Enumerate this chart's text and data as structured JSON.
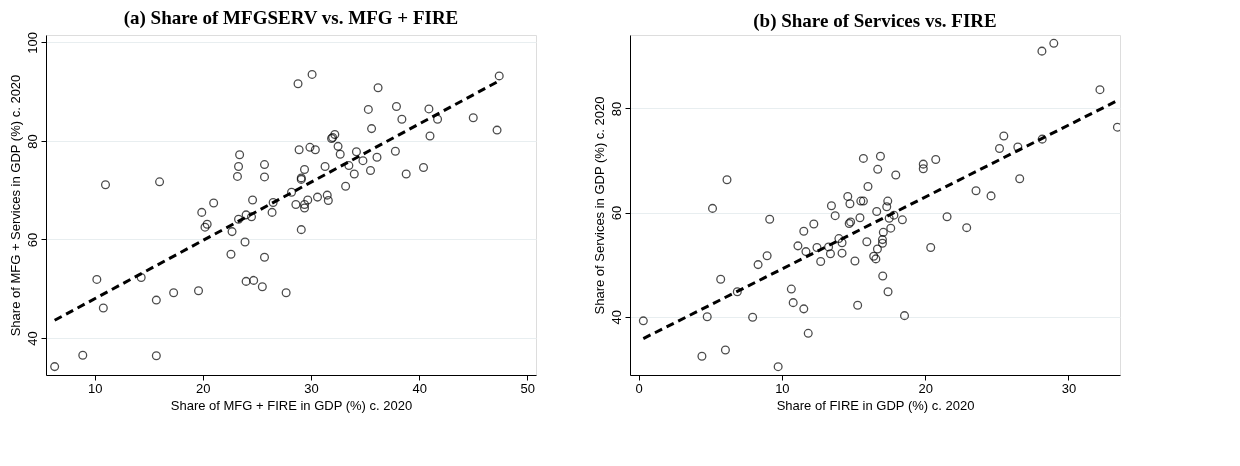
{
  "chart_data": [
    {
      "type": "scatter",
      "title": "(a) Share of MFGSERV vs. MFG + FIRE",
      "xlabel": "Share of MFG + FIRE in GDP (%) c. 2020",
      "ylabel": "Share of MFG + Services in GDP (%) c. 2020",
      "xlim": [
        5.5,
        50.8
      ],
      "ylim": [
        32.5,
        101.5
      ],
      "xticks": [
        10,
        20,
        30,
        40,
        50
      ],
      "yticks": [
        40,
        60,
        80,
        100
      ],
      "grid": "y",
      "series": [
        {
          "color": "#000000",
          "marker": "circle",
          "x": [
            6.3,
            8.9,
            11.0,
            10.2,
            10.8,
            14.3,
            15.7,
            15.7,
            16.0,
            17.3,
            19.6,
            19.9,
            20.2,
            20.4,
            21.0,
            22.7,
            22.6,
            23.4,
            23.3,
            23.2,
            23.3,
            23.9,
            24.0,
            24.5,
            24.6,
            24.0,
            24.7,
            25.5,
            25.7,
            25.7,
            25.7,
            26.4,
            26.5,
            27.7,
            28.2,
            28.8,
            30.1,
            28.9,
            29.9,
            30.4,
            29.4,
            29.1,
            29.1,
            28.6,
            29.4,
            29.4,
            29.7,
            30.6,
            29.1,
            31.3,
            31.5,
            31.6,
            31.9,
            32.0,
            32.2,
            32.5,
            32.7,
            33.2,
            33.5,
            34.0,
            34.2,
            34.8,
            35.3,
            35.6,
            35.5,
            36.1,
            36.2,
            37.9,
            37.8,
            38.4,
            38.8,
            40.4,
            40.9,
            41.0,
            41.7,
            45.0,
            47.2,
            47.4
          ],
          "values": [
            34.2,
            36.5,
            71.1,
            51.9,
            46.1,
            52.3,
            47.7,
            36.4,
            71.7,
            49.2,
            49.6,
            65.5,
            62.5,
            63.1,
            67.4,
            61.6,
            57.0,
            77.2,
            74.8,
            72.8,
            64.1,
            59.5,
            65.0,
            64.6,
            68.0,
            51.5,
            51.7,
            50.4,
            75.2,
            72.7,
            56.4,
            65.5,
            67.5,
            49.2,
            69.6,
            91.6,
            93.5,
            78.2,
            78.7,
            78.2,
            74.2,
            72.5,
            72.2,
            67.1,
            67.1,
            66.4,
            68.0,
            68.6,
            62.0,
            74.8,
            69.0,
            67.9,
            80.5,
            80.7,
            81.3,
            78.9,
            77.3,
            70.8,
            75.0,
            73.3,
            77.8,
            76.0,
            86.4,
            82.5,
            74.0,
            76.7,
            90.8,
            87.0,
            77.9,
            84.4,
            73.3,
            74.6,
            86.5,
            81.0,
            84.4,
            84.7,
            82.2,
            93.2
          ]
        },
        {
          "type": "line",
          "color": "#000000",
          "line_style": "dashed",
          "marker": "none",
          "x": [
            6.3,
            47.4
          ],
          "values": [
            43.6,
            92.2
          ]
        }
      ]
    },
    {
      "type": "scatter",
      "title": "(b) Share of Services vs. FIRE",
      "xlabel": "Share of FIRE in GDP (%) c. 2020",
      "ylabel": "Share of Services in GDP (%) c. 2020",
      "xlim": [
        -0.6,
        33.6
      ],
      "ylim": [
        28.8,
        94.1
      ],
      "xticks": [
        0,
        10,
        20,
        30
      ],
      "yticks": [
        40,
        60,
        80
      ],
      "grid": "y",
      "series": [
        {
          "color": "#000000",
          "marker": "circle",
          "x": [
            0.33,
            4.42,
            4.79,
            5.16,
            5.73,
            6.06,
            6.17,
            6.89,
            7.96,
            8.34,
            8.97,
            9.15,
            9.74,
            10.66,
            10.79,
            11.12,
            11.53,
            11.68,
            11.53,
            11.84,
            12.23,
            12.45,
            12.71,
            13.26,
            13.39,
            13.46,
            13.72,
            13.98,
            14.2,
            14.2,
            14.6,
            14.75,
            14.7,
            14.8,
            15.1,
            15.29,
            15.45,
            15.51,
            15.69,
            15.69,
            15.93,
            16.01,
            16.41,
            16.56,
            16.62,
            16.69,
            16.67,
            16.88,
            17.02,
            17.02,
            17.08,
            17.04,
            17.32,
            17.39,
            17.49,
            17.6,
            17.41,
            17.82,
            17.95,
            18.41,
            18.56,
            19.87,
            19.87,
            20.39,
            20.74,
            21.53,
            22.9,
            23.55,
            24.6,
            25.19,
            25.49,
            26.47,
            26.6,
            28.15,
            28.17,
            28.98,
            32.2,
            33.42
          ],
          "values": [
            39.2,
            32.4,
            40.0,
            60.8,
            47.2,
            33.6,
            66.3,
            44.8,
            39.9,
            50.0,
            51.7,
            58.7,
            30.4,
            45.3,
            42.7,
            53.6,
            56.4,
            52.5,
            41.5,
            36.8,
            57.8,
            53.3,
            50.6,
            53.4,
            52.1,
            61.3,
            59.4,
            55.0,
            54.2,
            52.2,
            63.1,
            61.7,
            57.9,
            58.2,
            50.7,
            42.2,
            59.0,
            62.2,
            62.2,
            70.4,
            54.4,
            65.0,
            51.6,
            51.1,
            60.2,
            68.3,
            53.0,
            70.8,
            54.1,
            54.8,
            56.2,
            47.8,
            61.1,
            62.2,
            58.9,
            57.0,
            44.8,
            59.5,
            67.2,
            58.6,
            40.2,
            69.3,
            68.4,
            53.3,
            70.2,
            59.2,
            57.1,
            64.2,
            63.2,
            72.3,
            74.7,
            72.6,
            66.5,
            91.0,
            74.1,
            92.5,
            83.6,
            76.4
          ]
        },
        {
          "type": "line",
          "color": "#000000",
          "line_style": "dashed",
          "marker": "none",
          "x": [
            0.33,
            33.42
          ],
          "values": [
            35.8,
            81.5
          ]
        }
      ]
    }
  ]
}
